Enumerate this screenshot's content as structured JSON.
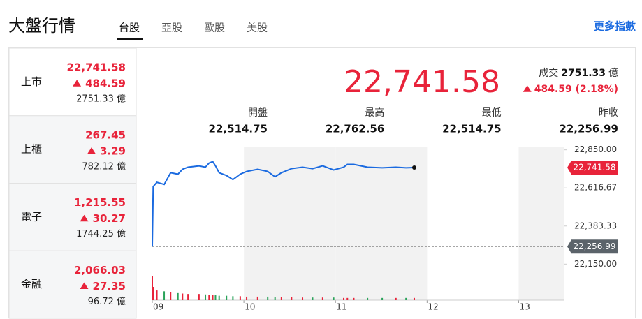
{
  "header": {
    "title": "大盤行情",
    "tabs": [
      "台股",
      "亞股",
      "歐股",
      "美股"
    ],
    "more_link": "更多指數"
  },
  "markets": [
    {
      "name": "上市",
      "price": "22,741.58",
      "change": "484.59",
      "volume": "2751.33 億"
    },
    {
      "name": "上櫃",
      "price": "267.45",
      "change": "3.29",
      "volume": "782.12 億"
    },
    {
      "name": "電子",
      "price": "1,215.55",
      "change": "30.27",
      "volume": "1744.25 億"
    },
    {
      "name": "金融",
      "price": "2,066.03",
      "change": "27.35",
      "volume": "96.72 億"
    }
  ],
  "quote": {
    "price": "22,741.58",
    "volume_label": "成交",
    "volume": "2751.33",
    "volume_unit": "億",
    "change": "484.59 (2.18%)"
  },
  "stats": [
    {
      "label": "開盤",
      "value": "22,514.75"
    },
    {
      "label": "最高",
      "value": "22,762.56"
    },
    {
      "label": "最低",
      "value": "22,514.75"
    },
    {
      "label": "昨收",
      "value": "22,256.99"
    }
  ],
  "chart_data": {
    "type": "line",
    "x": [
      9.0,
      9.01,
      9.05,
      9.13,
      9.2,
      9.28,
      9.33,
      9.39,
      9.51,
      9.58,
      9.62,
      9.66,
      9.69,
      9.73,
      9.81,
      9.88,
      9.96,
      10.03,
      10.15,
      10.26,
      10.34,
      10.41,
      10.52,
      10.64,
      10.75,
      10.86,
      10.98,
      11.09,
      11.13,
      11.2,
      11.35,
      11.51,
      11.66,
      11.77,
      11.86
    ],
    "series": [
      {
        "color": "#1a6ae0",
        "values": [
          22256.99,
          22625,
          22651,
          22638,
          22710,
          22701,
          22731,
          22744,
          22752,
          22744,
          22769,
          22778,
          22752,
          22710,
          22693,
          22668,
          22701,
          22718,
          22731,
          22718,
          22685,
          22710,
          22735,
          22744,
          22735,
          22752,
          22727,
          22744,
          22761,
          22761,
          22744,
          22740,
          22744,
          22740,
          22741.58
        ]
      }
    ],
    "volume": [
      55,
      30,
      22,
      20,
      18,
      16,
      15,
      14,
      14,
      13,
      12,
      12,
      11,
      10,
      10,
      9,
      9,
      8,
      8,
      8,
      7,
      7,
      7,
      6,
      6,
      6,
      6,
      5,
      5,
      5,
      5,
      5,
      5,
      5,
      5
    ],
    "volume_ylim": [
      0,
      60
    ],
    "up_color": "#e8233a",
    "down_color": "#2aa35a",
    "xlim": [
      9,
      13.5
    ],
    "xticks": [
      {
        "value": 9,
        "label": "09"
      },
      10,
      11,
      12,
      13
    ],
    "ylim": [
      22100,
      22870
    ],
    "yticks": [
      {
        "value": 22850,
        "label": "22,850.00"
      },
      {
        "value": 22616.67,
        "label": "22,616.67"
      },
      {
        "value": 22383.33,
        "label": "22,383.33"
      },
      {
        "value": 22150,
        "label": "22,150.00"
      }
    ],
    "markers": [
      {
        "value": 22741.58,
        "label": "22,741.58",
        "color": "#e8233a"
      },
      {
        "value": 22256.99,
        "label": "22,256.99",
        "color": "#5b636a"
      }
    ]
  }
}
